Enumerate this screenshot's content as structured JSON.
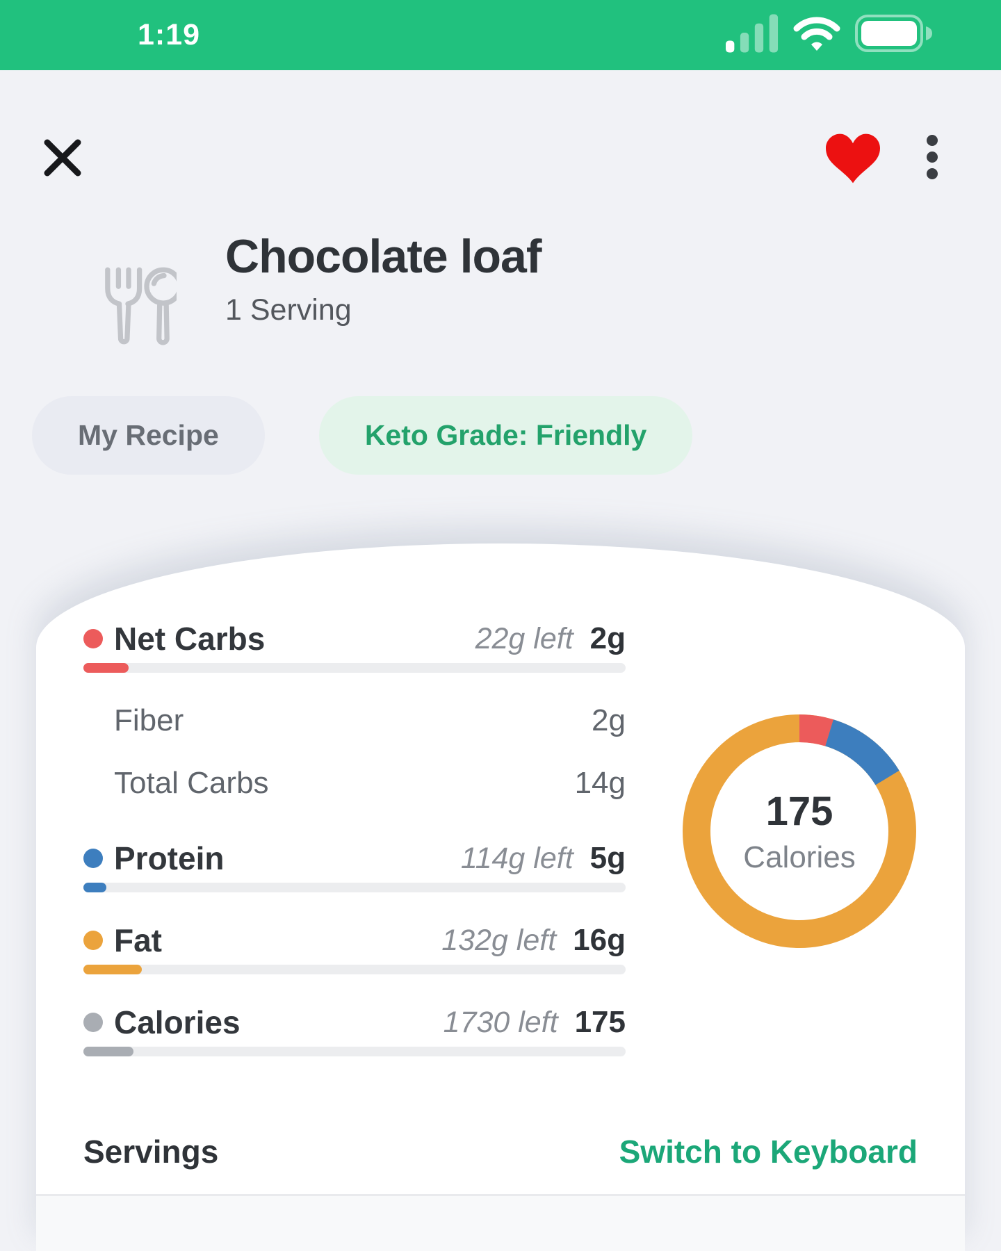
{
  "status_bar": {
    "time": "1:19"
  },
  "theme": {
    "brand_green": "#21C17E",
    "accent_green_text": "#1BA778",
    "page_background": "#F1F2F6",
    "card_background": "#FFFFFF",
    "heart_red": "#EC1111"
  },
  "recipe": {
    "title": "Chocolate loaf",
    "serving": "1 Serving"
  },
  "badges": [
    {
      "label": "My Recipe"
    },
    {
      "label": "Keto Grade: Friendly"
    }
  ],
  "nutrition": {
    "rows": [
      {
        "label": "Net Carbs",
        "remaining": "22g left",
        "value": "2g",
        "color": "#EC5B5B",
        "progress_pct": 8.3
      },
      {
        "label": "Protein",
        "remaining": "114g left",
        "value": "5g",
        "color": "#3D7EBE",
        "progress_pct": 4.2
      },
      {
        "label": "Fat",
        "remaining": "132g left",
        "value": "16g",
        "color": "#EBA33C",
        "progress_pct": 10.8
      },
      {
        "label": "Calories",
        "remaining": "1730 left",
        "value": "175",
        "color": "#A9ADB3",
        "progress_pct": 9.2
      }
    ],
    "sub_rows": [
      {
        "label": "Fiber",
        "value": "2g"
      },
      {
        "label": "Total Carbs",
        "value": "14g"
      }
    ]
  },
  "chart_data": {
    "type": "pie",
    "title": "Calorie macro breakdown donut",
    "center_value": "175",
    "center_label": "Calories",
    "legend_position": "none",
    "segments": [
      {
        "name": "Net Carbs",
        "pct": 4.7,
        "color": "#EC5B5B"
      },
      {
        "name": "Protein",
        "pct": 11.6,
        "color": "#3D7EBE"
      },
      {
        "name": "Fat",
        "pct": 83.7,
        "color": "#EBA33C"
      }
    ]
  },
  "servings": {
    "label": "Servings",
    "switch_button": "Switch to Keyboard"
  }
}
